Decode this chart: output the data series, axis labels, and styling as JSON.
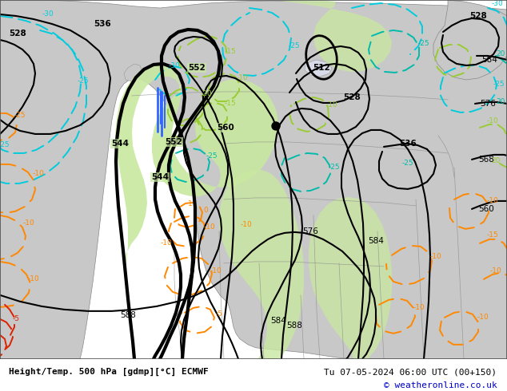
{
  "title_bottom_left": "Height/Temp. 500 hPa [gdmp][°C] ECMWF",
  "title_bottom_right": "Tu 07-05-2024 06:00 UTC (00+150)",
  "copyright": "© weatheronline.co.uk",
  "ocean_color": "#d8dce8",
  "land_color": "#c8c8c8",
  "green_fill_color": "#c8e8a0",
  "z500_color": "#000000",
  "cyan_color": "#00ccdd",
  "teal_color": "#00bbaa",
  "green_temp_color": "#99cc33",
  "orange_color": "#ff8800",
  "red_color": "#dd2200",
  "blue_color": "#3366ff",
  "copyright_color": "#0000cc",
  "fig_width": 6.34,
  "fig_height": 4.9,
  "dpi": 100
}
